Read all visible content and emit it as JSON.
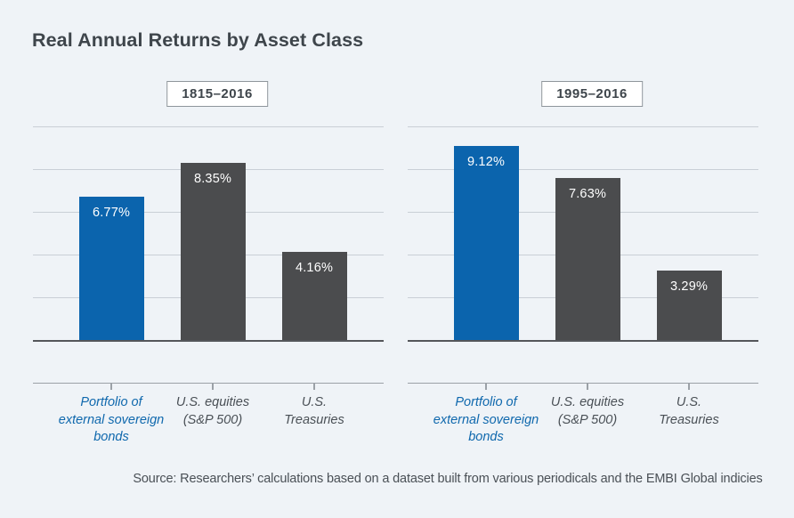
{
  "figure": {
    "title": "Real Annual Returns by Asset Class",
    "source_note": "Source: Researchers’ calculations based on a dataset built from various periodicals and the EMBI Global indicies"
  },
  "colors": {
    "background": "#eff3f7",
    "title_text": "#3e454b",
    "highlight_bar": "#0b64ad",
    "default_bar": "#4b4c4e",
    "bar_value_text": "#ffffff",
    "gridline": "#c9cfd6",
    "baseline": "#54565a",
    "axis": "#9ba1a7",
    "category_text": "#4a5056",
    "category_highlight_text": "#0f68ad",
    "period_box_border": "#8e959b",
    "period_box_bg": "#ffffff",
    "source_text": "#4a5056"
  },
  "chart_data": [
    {
      "type": "bar",
      "title": "1815–2016",
      "categories": [
        [
          "Portfolio of",
          "external sovereign",
          "bonds"
        ],
        [
          "U.S. equities",
          "(S&P 500)"
        ],
        [
          "U.S.",
          "Treasuries"
        ]
      ],
      "values": [
        6.77,
        8.35,
        4.16
      ],
      "value_labels": [
        "6.77%",
        "8.35%",
        "4.16%"
      ],
      "highlight": [
        true,
        false,
        false
      ],
      "xlabel": "",
      "ylabel": "",
      "ylim": [
        0,
        10
      ],
      "grid_step": 2,
      "grid": "horizontal",
      "legend": "none"
    },
    {
      "type": "bar",
      "title": "1995–2016",
      "categories": [
        [
          "Portfolio of",
          "external sovereign",
          "bonds"
        ],
        [
          "U.S. equities",
          "(S&P 500)"
        ],
        [
          "U.S.",
          "Treasuries"
        ]
      ],
      "values": [
        9.12,
        7.63,
        3.29
      ],
      "value_labels": [
        "9.12%",
        "7.63%",
        "3.29%"
      ],
      "highlight": [
        true,
        false,
        false
      ],
      "xlabel": "",
      "ylabel": "",
      "ylim": [
        0,
        10
      ],
      "grid_step": 2,
      "grid": "horizontal",
      "legend": "none"
    }
  ]
}
